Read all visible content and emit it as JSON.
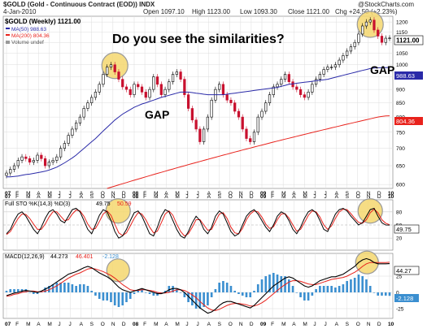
{
  "header": {
    "symbol_line": "$GOLD (Gold - Continuous Contract (EOD)) INDX",
    "date": "4-Jan-2010",
    "open": "Open 1097.10",
    "high": "High 1123.00",
    "low": "Low 1093.30",
    "close": "Close 1121.00",
    "change": "Chg +24.50 (+2.23%)",
    "source": "@StockCharts.com"
  },
  "price_legend": {
    "title": "$GOLD (Weekly) 1121.00",
    "ma50": "MA(50) 988.63",
    "ma200": "MA(200) 804.36",
    "volume": "Volume undef"
  },
  "annotations": {
    "question": "Do you see the similarities?",
    "gap_left": "GAP",
    "gap_right": "GAP"
  },
  "price_axis_badges": {
    "close": "1121.00",
    "ma50": "988.63",
    "ma200": "804.36"
  },
  "stoch_legend": {
    "label": "Full STO %K(14,3) %D(3)",
    "k": "49.75",
    "d": "50.59",
    "badge": "49.75"
  },
  "macd_legend": {
    "label": "MACD(12,26,9)",
    "macd": "44.273",
    "signal": "46.401",
    "hist": "-2.128",
    "badge_macd": "44.27",
    "badge_hist": "-2.128"
  },
  "colors": {
    "price": "#000000",
    "ma50": "#2a2aa8",
    "ma200": "#e8221c",
    "up_candle": "#000000",
    "down_candle": "#c8102e",
    "stoch_k": "#000000",
    "stoch_d": "#e8221c",
    "macd_line": "#000000",
    "signal_line": "#e8221c",
    "histogram": "#3b8fd0",
    "highlight_circle": "#f5d76e",
    "highlight_border": "#999999"
  },
  "chart_data": [
    {
      "type": "line",
      "panel": "price",
      "x_ticks": [
        "07",
        "F",
        "M",
        "A",
        "M",
        "J",
        "J",
        "A",
        "S",
        "O",
        "N",
        "D",
        "08",
        "F",
        "M",
        "A",
        "M",
        "J",
        "J",
        "A",
        "S",
        "O",
        "N",
        "D",
        "09",
        "F",
        "M",
        "A",
        "M",
        "J",
        "J",
        "A",
        "S",
        "O",
        "N",
        "D",
        "10"
      ],
      "y_ticks": [
        600,
        650,
        700,
        750,
        800,
        850,
        900,
        950,
        1000,
        1050,
        1100,
        1150,
        1200
      ],
      "ylim": [
        590,
        1230
      ],
      "ylog": true,
      "series": [
        {
          "name": "$GOLD",
          "values": [
            630,
            640,
            650,
            665,
            675,
            670,
            660,
            665,
            680,
            670,
            650,
            660,
            665,
            675,
            700,
            715,
            740,
            760,
            780,
            800,
            830,
            850,
            870,
            890,
            920,
            960,
            990,
            1000,
            970,
            940,
            910,
            900,
            880,
            920,
            910,
            890,
            870,
            900,
            950,
            920,
            880,
            900,
            930,
            960,
            970,
            940,
            880,
            830,
            790,
            760,
            720,
            760,
            800,
            860,
            900,
            920,
            880,
            860,
            850,
            820,
            800,
            760,
            730,
            720,
            750,
            800,
            820,
            850,
            880,
            910,
            920,
            940,
            960,
            930,
            910,
            900,
            880,
            870,
            890,
            920,
            940,
            960,
            980,
            990,
            990,
            1000,
            1020,
            1040,
            1060,
            1080,
            1100,
            1140,
            1180,
            1200,
            1210,
            1160,
            1130,
            1100,
            1120,
            1121
          ]
        },
        {
          "name": "MA(50)",
          "values": [
            620,
            620,
            621,
            622,
            624,
            626,
            627,
            629,
            631,
            633,
            635,
            638,
            642,
            646,
            652,
            658,
            665,
            672,
            680,
            690,
            700,
            710,
            720,
            730,
            742,
            754,
            766,
            778,
            790,
            800,
            810,
            818,
            826,
            834,
            840,
            846,
            850,
            855,
            860,
            865,
            870,
            874,
            878,
            882,
            886,
            890,
            890,
            890,
            888,
            886,
            884,
            882,
            880,
            880,
            880,
            880,
            880,
            882,
            884,
            886,
            888,
            890,
            892,
            894,
            896,
            898,
            900,
            902,
            904,
            906,
            908,
            912,
            916,
            920,
            922,
            924,
            926,
            928,
            930,
            932,
            934,
            936,
            938,
            940,
            944,
            948,
            952,
            956,
            960,
            964,
            968,
            972,
            976,
            980,
            984,
            986,
            987,
            988,
            988,
            988.63
          ]
        },
        {
          "name": "MA(200)",
          "values": [
            590,
            593,
            596,
            599,
            602,
            605,
            608,
            611,
            614,
            617,
            620,
            623,
            626,
            629,
            632,
            635,
            638,
            641,
            644,
            647,
            650,
            653,
            656,
            659,
            662,
            665,
            668,
            671,
            674,
            677,
            680,
            683,
            686,
            689,
            692,
            695,
            698,
            701,
            704,
            707,
            710,
            713,
            716,
            719,
            722,
            725,
            728,
            731,
            734,
            737,
            740,
            743,
            746,
            749,
            752,
            755,
            758,
            761,
            764,
            767,
            770,
            773,
            776,
            779,
            782,
            785,
            788,
            791,
            794,
            797,
            800,
            802,
            804,
            804.36
          ]
        }
      ],
      "legend": "top-left",
      "grid": true
    },
    {
      "type": "line",
      "panel": "stochastic",
      "y_ticks": [
        20,
        50,
        80
      ],
      "ylim": [
        0,
        100
      ],
      "series": [
        {
          "name": "%K(14,3)",
          "values": [
            30,
            40,
            60,
            75,
            80,
            70,
            55,
            40,
            30,
            45,
            65,
            80,
            85,
            75,
            60,
            55,
            70,
            85,
            88,
            80,
            60,
            40,
            30,
            50,
            72,
            85,
            80,
            60,
            35,
            20,
            25,
            40,
            60,
            78,
            82,
            70,
            50,
            30,
            25,
            45,
            70,
            85,
            80,
            60,
            40,
            25,
            20,
            35,
            55,
            70,
            60,
            40,
            30,
            45,
            70,
            82,
            75,
            55,
            35,
            25,
            30,
            50,
            70,
            80,
            85,
            75,
            60,
            45,
            35,
            50,
            70,
            80,
            75,
            60,
            40,
            30,
            45,
            65,
            80,
            85,
            78,
            60,
            40,
            35,
            55,
            75,
            85,
            88,
            82,
            70,
            60,
            50,
            55,
            70,
            85,
            88,
            70,
            55,
            50,
            49.75
          ]
        },
        {
          "name": "%D(3)",
          "values": [
            28,
            35,
            50,
            65,
            75,
            74,
            65,
            52,
            40,
            40,
            52,
            68,
            80,
            80,
            70,
            60,
            62,
            75,
            84,
            82,
            70,
            52,
            40,
            42,
            58,
            75,
            82,
            72,
            52,
            32,
            26,
            32,
            48,
            65,
            78,
            75,
            62,
            45,
            32,
            36,
            55,
            75,
            82,
            72,
            52,
            35,
            25,
            30,
            45,
            62,
            62,
            50,
            38,
            40,
            58,
            75,
            78,
            65,
            45,
            32,
            30,
            42,
            62,
            75,
            82,
            80,
            68,
            52,
            42,
            46,
            62,
            75,
            76,
            66,
            50,
            36,
            40,
            55,
            72,
            82,
            80,
            68,
            50,
            40,
            48,
            65,
            80,
            86,
            85,
            76,
            65,
            56,
            54,
            62,
            78,
            86,
            78,
            62,
            54,
            50.59
          ]
        }
      ]
    },
    {
      "type": "line",
      "panel": "macd",
      "y_ticks": [
        -25,
        0,
        25
      ],
      "series": [
        {
          "name": "MACD(12,26,9)",
          "values": [
            -5,
            -3,
            -1,
            0,
            2,
            3,
            2,
            1,
            0,
            2,
            5,
            8,
            12,
            16,
            20,
            24,
            28,
            30,
            32,
            35,
            38,
            40,
            38,
            34,
            30,
            27,
            24,
            20,
            14,
            8,
            4,
            2,
            0,
            2,
            4,
            6,
            4,
            2,
            0,
            -2,
            -2,
            0,
            4,
            6,
            6,
            4,
            0,
            -6,
            -12,
            -18,
            -24,
            -28,
            -32,
            -30,
            -26,
            -20,
            -16,
            -14,
            -14,
            -16,
            -18,
            -20,
            -22,
            -24,
            -20,
            -14,
            -8,
            -2,
            4,
            10,
            14,
            18,
            22,
            24,
            22,
            18,
            14,
            10,
            8,
            10,
            14,
            18,
            20,
            22,
            24,
            24,
            26,
            28,
            32,
            36,
            40,
            46,
            50,
            52,
            50,
            46,
            44,
            44,
            44,
            44.273
          ]
        },
        {
          "name": "Signal",
          "values": [
            -6,
            -5,
            -3,
            -2,
            0,
            1,
            2,
            2,
            1,
            1,
            2,
            4,
            7,
            10,
            14,
            18,
            22,
            25,
            28,
            30,
            33,
            36,
            37,
            36,
            34,
            32,
            29,
            26,
            22,
            17,
            12,
            8,
            4,
            3,
            3,
            4,
            4,
            3,
            2,
            0,
            -1,
            -1,
            0,
            2,
            4,
            4,
            3,
            0,
            -4,
            -8,
            -14,
            -19,
            -24,
            -27,
            -28,
            -26,
            -23,
            -20,
            -18,
            -17,
            -17,
            -18,
            -19,
            -21,
            -21,
            -19,
            -16,
            -12,
            -7,
            -2,
            3,
            8,
            12,
            16,
            18,
            18,
            17,
            15,
            13,
            12,
            12,
            14,
            16,
            18,
            20,
            21,
            22,
            23,
            25,
            28,
            31,
            35,
            40,
            44,
            46,
            46,
            46,
            46,
            46,
            46.401
          ]
        }
      ]
    }
  ]
}
